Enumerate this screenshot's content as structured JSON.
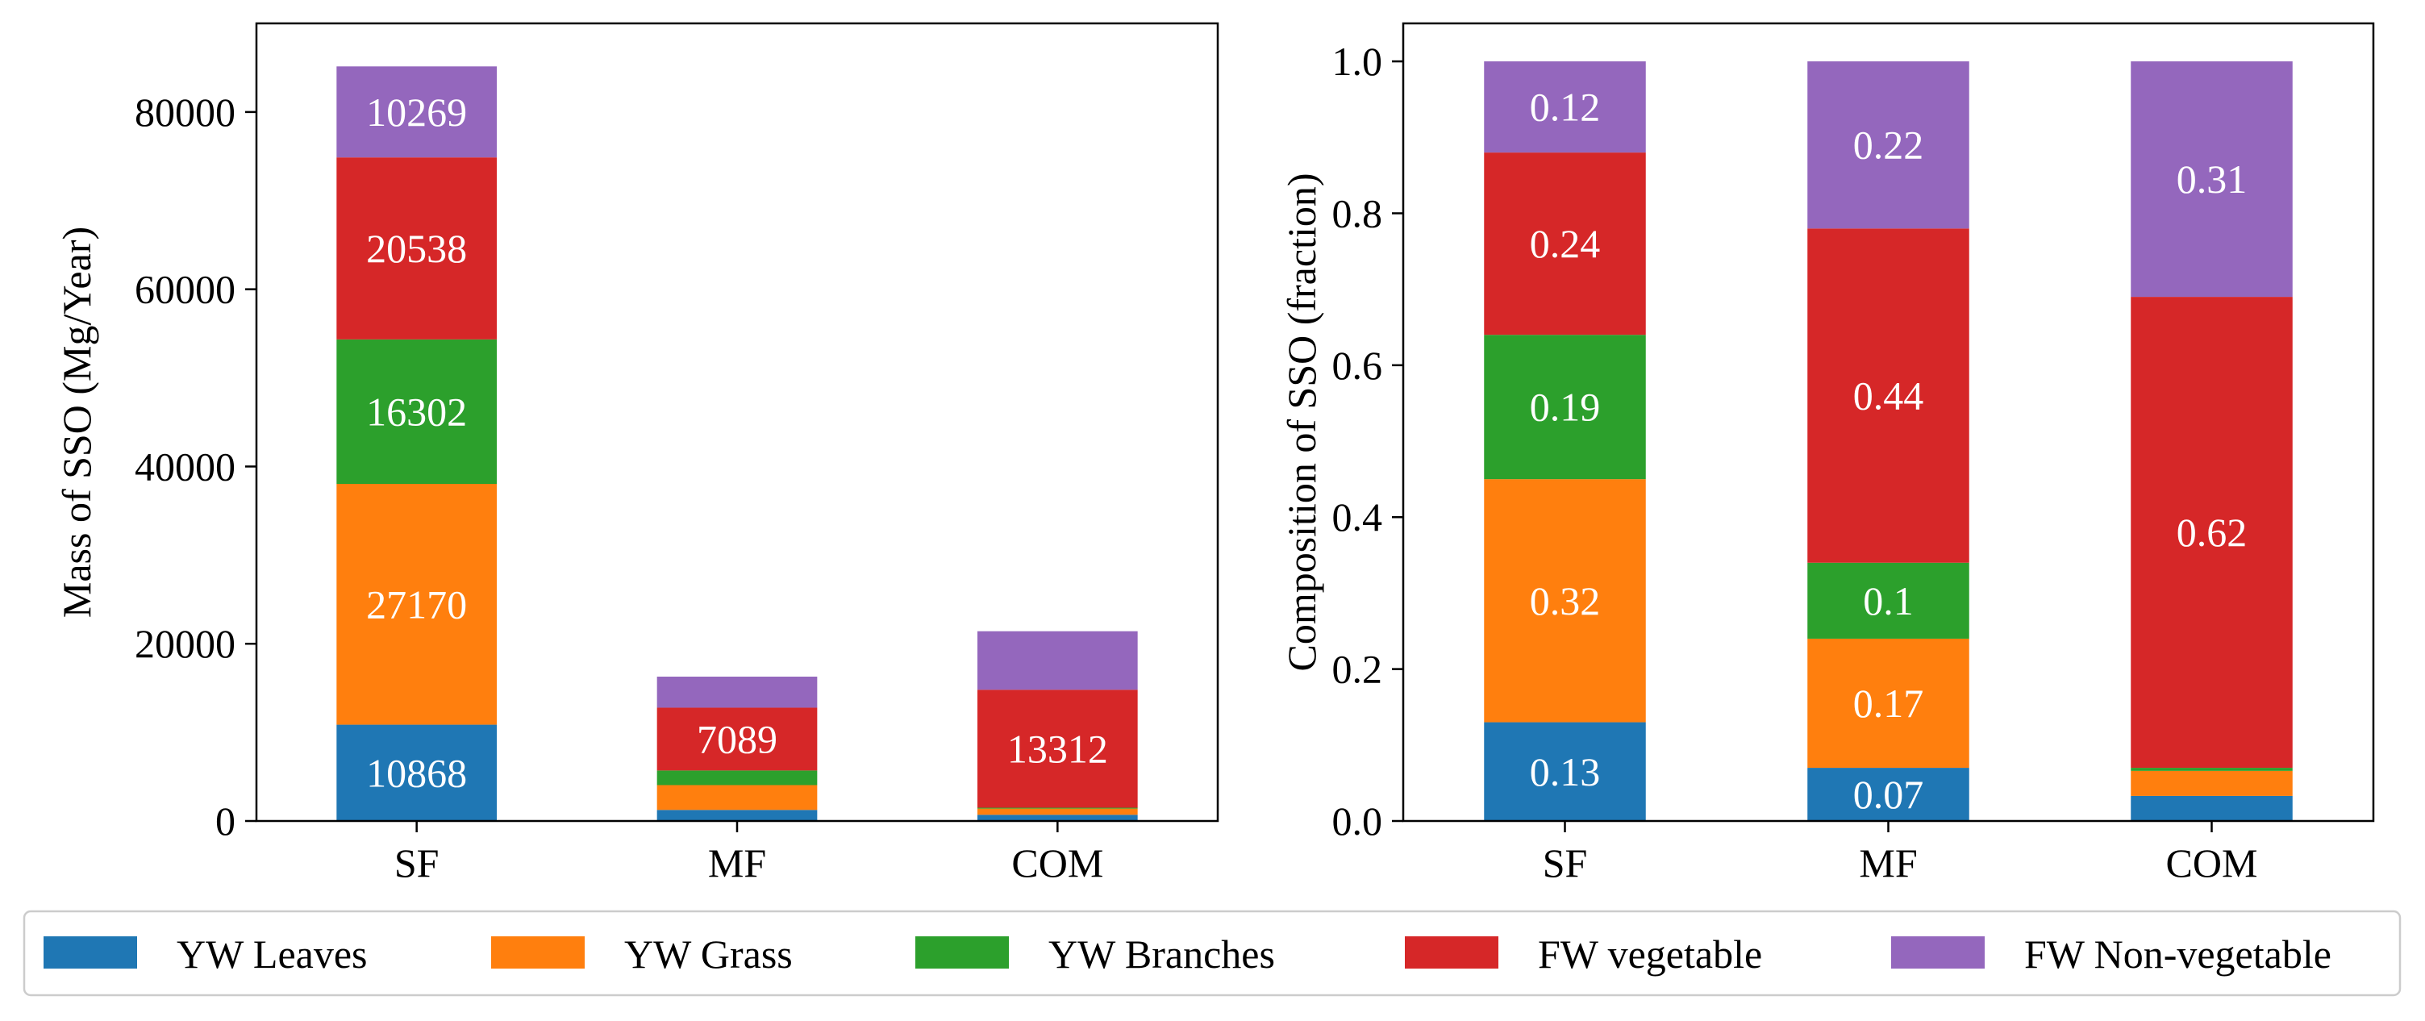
{
  "chart_data": [
    {
      "type": "bar",
      "stacked": true,
      "categories": [
        "SF",
        "MF",
        "COM"
      ],
      "series": [
        {
          "name": "YW Leaves",
          "color": "#1f77b4",
          "values": [
            10868,
            1250,
            700
          ]
        },
        {
          "name": "YW Grass",
          "color": "#ff7f0e",
          "values": [
            27170,
            2800,
            700
          ]
        },
        {
          "name": "YW Branches",
          "color": "#2ca02c",
          "values": [
            16302,
            1650,
            100
          ]
        },
        {
          "name": "FW vegetable",
          "color": "#d62728",
          "values": [
            20538,
            7089,
            13312
          ]
        },
        {
          "name": "FW Non-vegetable",
          "color": "#9467bd",
          "values": [
            10269,
            3500,
            6600
          ]
        }
      ],
      "labels": [
        [
          "10868",
          "",
          ""
        ],
        [
          "27170",
          "",
          ""
        ],
        [
          "16302",
          "",
          ""
        ],
        [
          "20538",
          "7089",
          "13312"
        ],
        [
          "10269",
          "",
          ""
        ]
      ],
      "ylabel": "Mass of SSO (Mg/Year)",
      "ylim": [
        0,
        90000
      ],
      "yticks": [
        "0",
        "20000",
        "40000",
        "60000",
        "80000"
      ],
      "ytick_values": [
        0,
        20000,
        40000,
        60000,
        80000
      ]
    },
    {
      "type": "bar",
      "stacked": true,
      "categories": [
        "SF",
        "MF",
        "COM"
      ],
      "series": [
        {
          "name": "YW Leaves",
          "color": "#1f77b4",
          "values": [
            0.13,
            0.07,
            0.033
          ]
        },
        {
          "name": "YW Grass",
          "color": "#ff7f0e",
          "values": [
            0.32,
            0.17,
            0.033
          ]
        },
        {
          "name": "YW Branches",
          "color": "#2ca02c",
          "values": [
            0.19,
            0.1,
            0.004
          ]
        },
        {
          "name": "FW vegetable",
          "color": "#d62728",
          "values": [
            0.24,
            0.44,
            0.62
          ]
        },
        {
          "name": "FW Non-vegetable",
          "color": "#9467bd",
          "values": [
            0.12,
            0.22,
            0.31
          ]
        }
      ],
      "labels": [
        [
          "0.13",
          "0.07",
          ""
        ],
        [
          "0.32",
          "0.17",
          ""
        ],
        [
          "0.19",
          "0.1",
          ""
        ],
        [
          "0.24",
          "0.44",
          "0.62"
        ],
        [
          "0.12",
          "0.22",
          "0.31"
        ]
      ],
      "ylabel": "Composition of SSO (fraction)",
      "ylim": [
        0,
        1.05
      ],
      "yticks": [
        "0.0",
        "0.2",
        "0.4",
        "0.6",
        "0.8",
        "1.0"
      ],
      "ytick_values": [
        0,
        0.2,
        0.4,
        0.6,
        0.8,
        1.0
      ]
    }
  ],
  "legend": {
    "placement": "bottom",
    "items": [
      {
        "label": "YW Leaves",
        "color": "#1f77b4"
      },
      {
        "label": "YW Grass",
        "color": "#ff7f0e"
      },
      {
        "label": "YW Branches",
        "color": "#2ca02c"
      },
      {
        "label": "FW vegetable",
        "color": "#d62728"
      },
      {
        "label": "FW Non-vegetable",
        "color": "#9467bd"
      }
    ]
  }
}
